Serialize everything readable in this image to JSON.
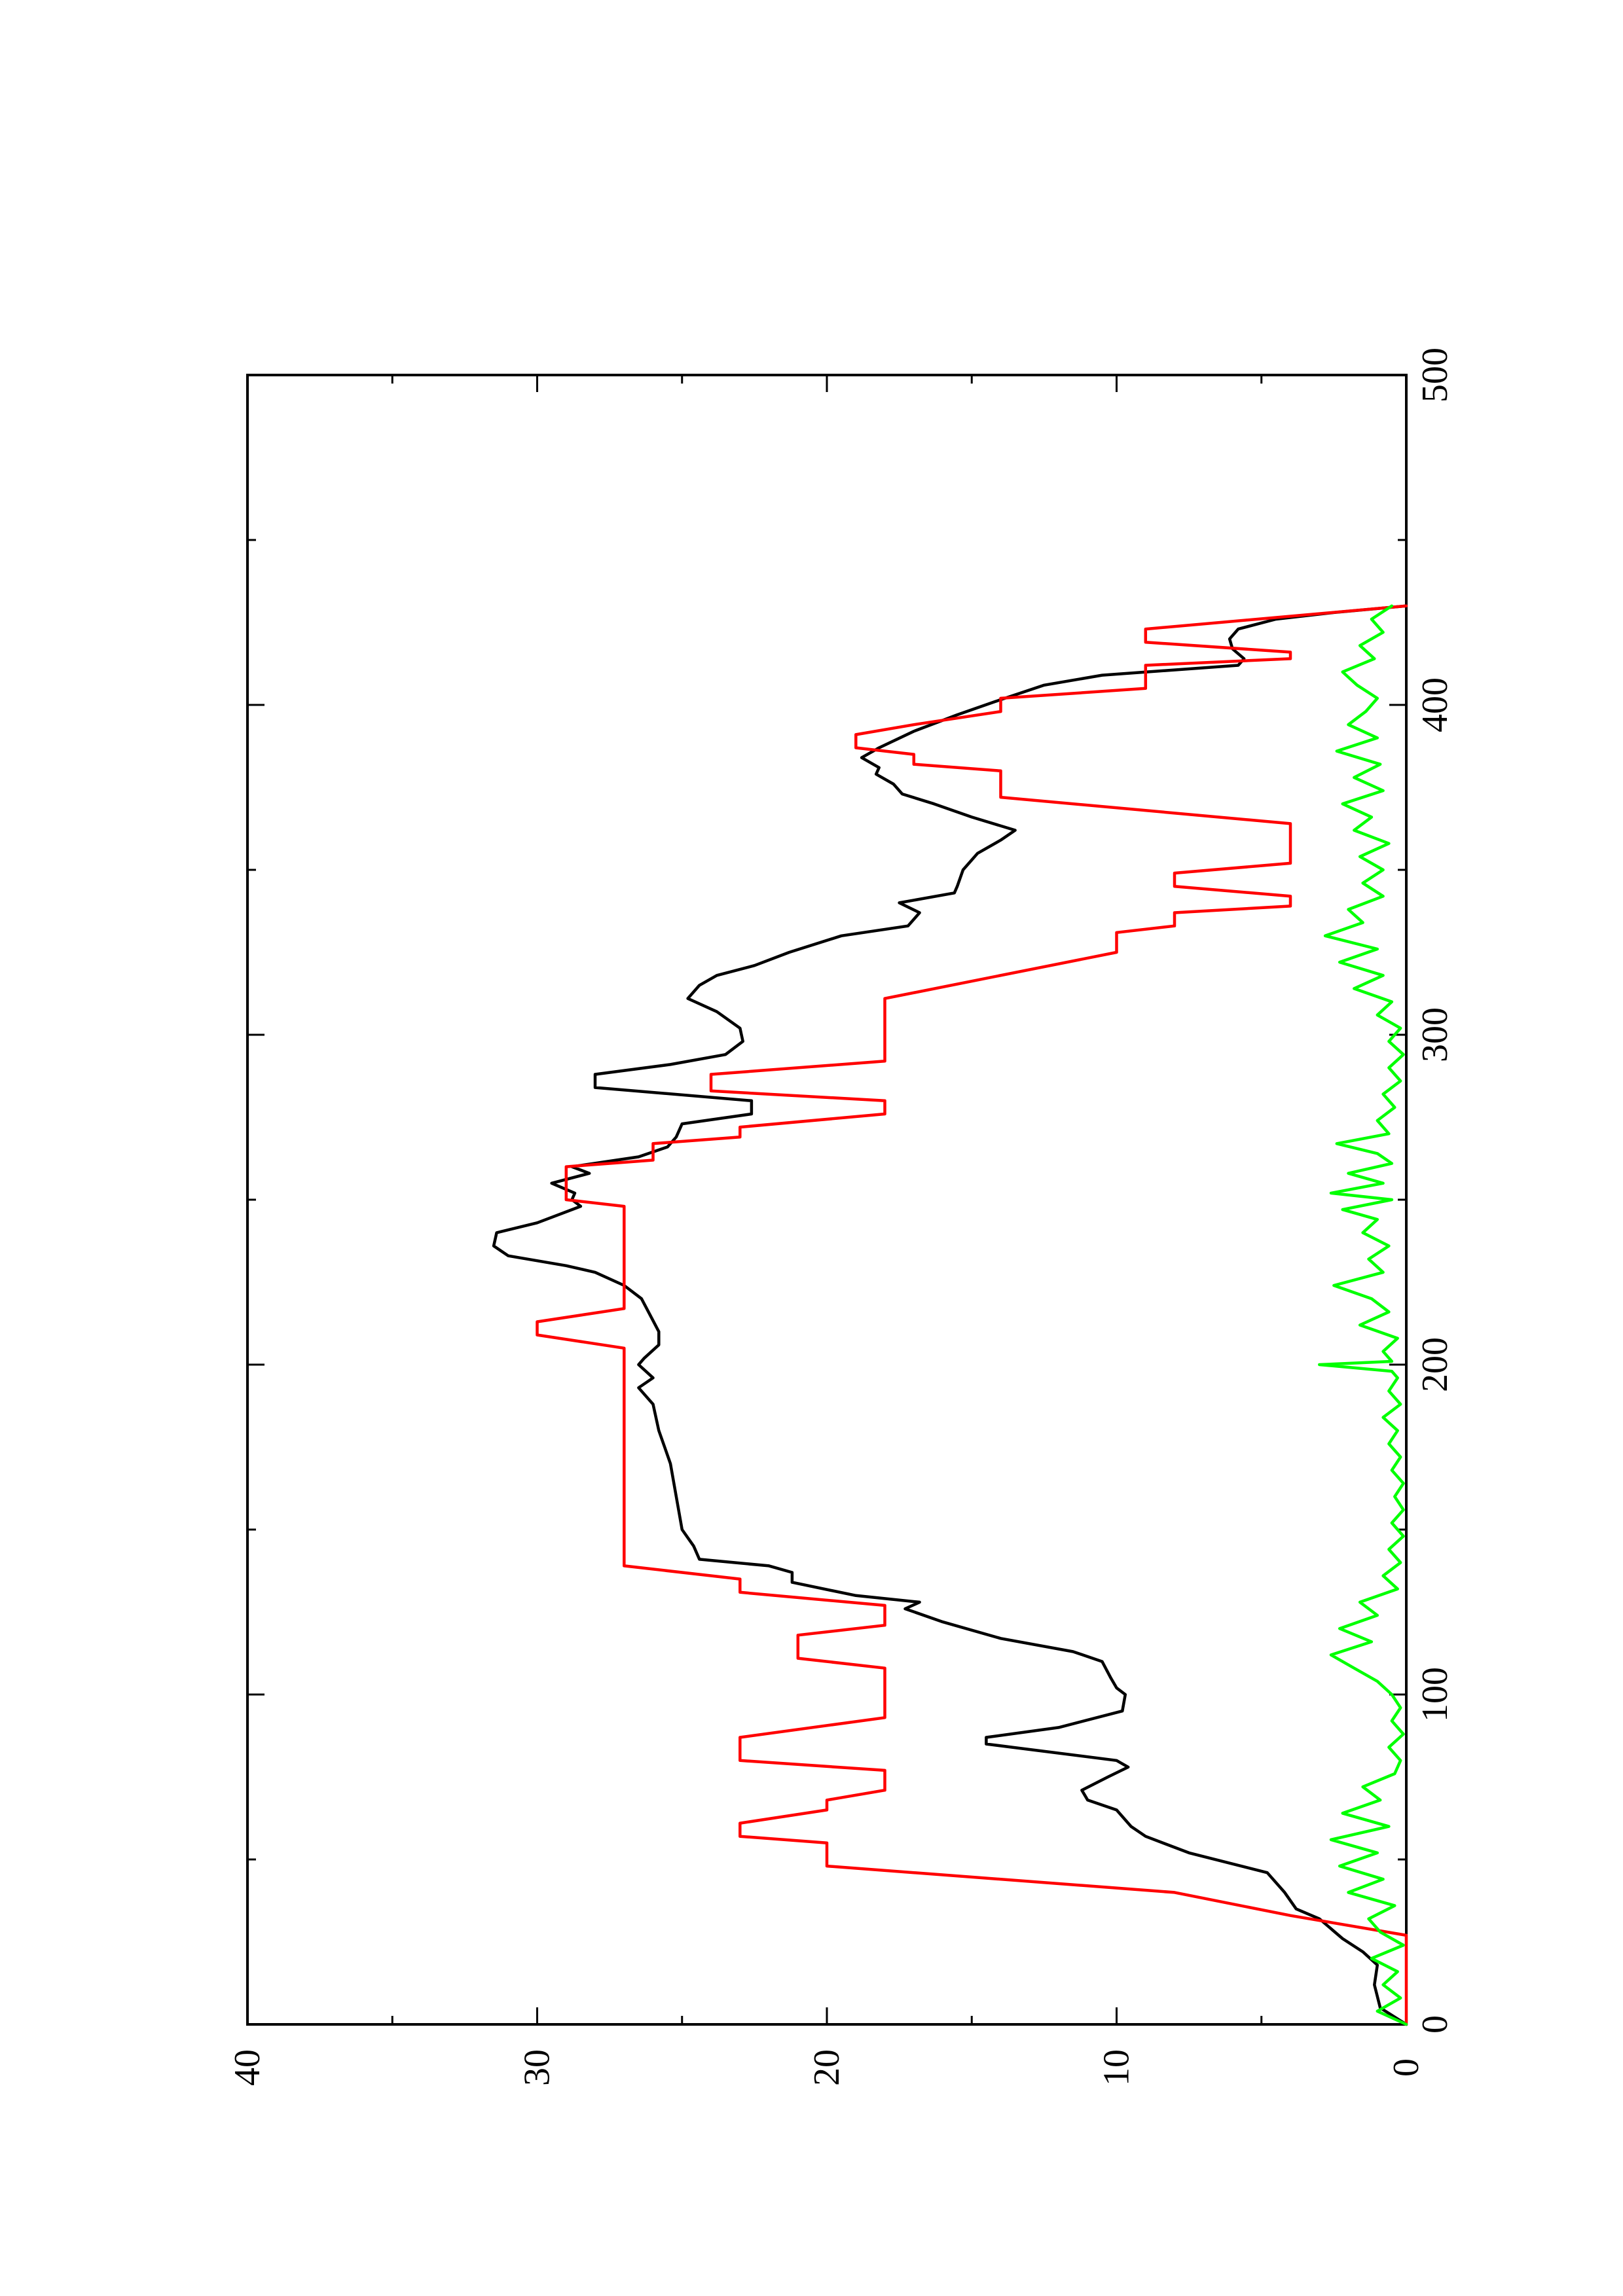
{
  "chart_data": {
    "type": "line",
    "orientation": "rotated-90-ccw",
    "title": "",
    "xlabel": "",
    "ylabel": "",
    "xlim": [
      0,
      500
    ],
    "ylim": [
      0,
      40
    ],
    "x_ticks": [
      0,
      100,
      200,
      300,
      400,
      500
    ],
    "y_ticks": [
      0,
      10,
      20,
      30,
      40
    ],
    "x_tick_labels": [
      "0",
      "100",
      "200",
      "300",
      "400",
      "500"
    ],
    "y_tick_labels": [
      "0",
      "10",
      "20",
      "30",
      "40"
    ],
    "grid": false,
    "legend": "none",
    "series": [
      {
        "color": "#000000",
        "points": [
          [
            0,
            0
          ],
          [
            5,
            0.9
          ],
          [
            12,
            1.1
          ],
          [
            18,
            1.0
          ],
          [
            22,
            1.5
          ],
          [
            26,
            2.2
          ],
          [
            32,
            3.0
          ],
          [
            35,
            3.8
          ],
          [
            40,
            4.2
          ],
          [
            46,
            4.8
          ],
          [
            52,
            7.5
          ],
          [
            57,
            9.0
          ],
          [
            60,
            9.5
          ],
          [
            65,
            10.0
          ],
          [
            68,
            11.0
          ],
          [
            71,
            11.2
          ],
          [
            75,
            10.3
          ],
          [
            78,
            9.6
          ],
          [
            80,
            10.0
          ],
          [
            85,
            14.5
          ],
          [
            87,
            14.5
          ],
          [
            90,
            12.0
          ],
          [
            95,
            9.8
          ],
          [
            100,
            9.7
          ],
          [
            102,
            10.0
          ],
          [
            105,
            10.2
          ],
          [
            110,
            10.5
          ],
          [
            113,
            11.5
          ],
          [
            117,
            14.0
          ],
          [
            122,
            16.0
          ],
          [
            126,
            17.3
          ],
          [
            128,
            16.8
          ],
          [
            130,
            19.0
          ],
          [
            134,
            21.2
          ],
          [
            137,
            21.2
          ],
          [
            139,
            22.0
          ],
          [
            141,
            24.4
          ],
          [
            145,
            24.6
          ],
          [
            150,
            25.0
          ],
          [
            160,
            25.2
          ],
          [
            170,
            25.4
          ],
          [
            175,
            25.6
          ],
          [
            180,
            25.8
          ],
          [
            188,
            26.0
          ],
          [
            193,
            26.5
          ],
          [
            196,
            26.0
          ],
          [
            200,
            26.5
          ],
          [
            202,
            26.3
          ],
          [
            206,
            25.8
          ],
          [
            210,
            25.8
          ],
          [
            215,
            26.1
          ],
          [
            220,
            26.4
          ],
          [
            224,
            27.0
          ],
          [
            228,
            28.0
          ],
          [
            230,
            29.0
          ],
          [
            233,
            31.0
          ],
          [
            236,
            31.5
          ],
          [
            240,
            31.4
          ],
          [
            243,
            30.0
          ],
          [
            248,
            28.5
          ],
          [
            250,
            28.8
          ],
          [
            252,
            28.7
          ],
          [
            255,
            29.5
          ],
          [
            258,
            28.2
          ],
          [
            260,
            28.8
          ],
          [
            263,
            26.5
          ],
          [
            266,
            25.5
          ],
          [
            269,
            25.2
          ],
          [
            273,
            25.0
          ],
          [
            276,
            22.6
          ],
          [
            280,
            22.6
          ],
          [
            284,
            28.0
          ],
          [
            288,
            28.0
          ],
          [
            291,
            25.4
          ],
          [
            294,
            23.5
          ],
          [
            298,
            22.9
          ],
          [
            302,
            23.0
          ],
          [
            307,
            23.8
          ],
          [
            311,
            24.8
          ],
          [
            315,
            24.4
          ],
          [
            318,
            23.8
          ],
          [
            321,
            22.5
          ],
          [
            325,
            21.3
          ],
          [
            330,
            19.5
          ],
          [
            333,
            17.2
          ],
          [
            337,
            16.8
          ],
          [
            340,
            17.5
          ],
          [
            343,
            15.6
          ],
          [
            345,
            15.5
          ],
          [
            350,
            15.3
          ],
          [
            353,
            15.0
          ],
          [
            355,
            14.8
          ],
          [
            359,
            14.0
          ],
          [
            362,
            13.5
          ],
          [
            366,
            15.0
          ],
          [
            370,
            16.3
          ],
          [
            373,
            17.4
          ],
          [
            376,
            17.7
          ],
          [
            379,
            18.3
          ],
          [
            381,
            18.2
          ],
          [
            384,
            18.8
          ],
          [
            387,
            18.2
          ],
          [
            392,
            17.0
          ],
          [
            397,
            15.5
          ],
          [
            401,
            14.2
          ],
          [
            406,
            12.5
          ],
          [
            409,
            10.5
          ],
          [
            412,
            5.8
          ],
          [
            414,
            5.6
          ],
          [
            417,
            6.0
          ],
          [
            420,
            6.1
          ],
          [
            423,
            5.8
          ],
          [
            426,
            4.5
          ],
          [
            428,
            2.5
          ],
          [
            430,
            0
          ]
        ]
      },
      {
        "color": "#ff0000",
        "points": [
          [
            0,
            0
          ],
          [
            27,
            0
          ],
          [
            33,
            4
          ],
          [
            40,
            8
          ],
          [
            48,
            20
          ],
          [
            55,
            20
          ],
          [
            57,
            23
          ],
          [
            61,
            23
          ],
          [
            65,
            20
          ],
          [
            68,
            20
          ],
          [
            71,
            18
          ],
          [
            77,
            18
          ],
          [
            80,
            23
          ],
          [
            87,
            23
          ],
          [
            93,
            18
          ],
          [
            108,
            18
          ],
          [
            111,
            21
          ],
          [
            118,
            21
          ],
          [
            121,
            18
          ],
          [
            127,
            18
          ],
          [
            131,
            23
          ],
          [
            135,
            23
          ],
          [
            139,
            27
          ],
          [
            205,
            27
          ],
          [
            209,
            30
          ],
          [
            213,
            30
          ],
          [
            217,
            27
          ],
          [
            248,
            27
          ],
          [
            250,
            29
          ],
          [
            260,
            29
          ],
          [
            262,
            26
          ],
          [
            267,
            26
          ],
          [
            269,
            23
          ],
          [
            272,
            23
          ],
          [
            276,
            18
          ],
          [
            280,
            18
          ],
          [
            283,
            24
          ],
          [
            288,
            24
          ],
          [
            292,
            18
          ],
          [
            311,
            18
          ],
          [
            325,
            10
          ],
          [
            331,
            10
          ],
          [
            333,
            8
          ],
          [
            337,
            8
          ],
          [
            339,
            4
          ],
          [
            342,
            4
          ],
          [
            345,
            8
          ],
          [
            349,
            8
          ],
          [
            352,
            4
          ],
          [
            364,
            4
          ],
          [
            372,
            14
          ],
          [
            380,
            14
          ],
          [
            382,
            17
          ],
          [
            385,
            17
          ],
          [
            387,
            19
          ],
          [
            391,
            19
          ],
          [
            394,
            17
          ],
          [
            398,
            14
          ],
          [
            402,
            14
          ],
          [
            405,
            9
          ],
          [
            412,
            9
          ],
          [
            414,
            4
          ],
          [
            416,
            4
          ],
          [
            419,
            9
          ],
          [
            423,
            9
          ],
          [
            430,
            0
          ]
        ]
      },
      {
        "color": "#00ff00",
        "points": [
          [
            0,
            0
          ],
          [
            4,
            1.0
          ],
          [
            8,
            0.2
          ],
          [
            12,
            0.8
          ],
          [
            16,
            0.3
          ],
          [
            20,
            1.2
          ],
          [
            24,
            0.1
          ],
          [
            28,
            0.9
          ],
          [
            32,
            1.3
          ],
          [
            36,
            0.4
          ],
          [
            40,
            2.0
          ],
          [
            44,
            0.8
          ],
          [
            48,
            2.3
          ],
          [
            52,
            1.0
          ],
          [
            56,
            2.6
          ],
          [
            60,
            0.6
          ],
          [
            64,
            2.2
          ],
          [
            68,
            0.9
          ],
          [
            72,
            1.5
          ],
          [
            76,
            0.4
          ],
          [
            80,
            0.2
          ],
          [
            84,
            0.6
          ],
          [
            88,
            0.1
          ],
          [
            92,
            0.5
          ],
          [
            96,
            0.2
          ],
          [
            100,
            0.5
          ],
          [
            104,
            1.0
          ],
          [
            108,
            1.8
          ],
          [
            112,
            2.6
          ],
          [
            116,
            1.2
          ],
          [
            120,
            2.3
          ],
          [
            124,
            1.0
          ],
          [
            128,
            1.6
          ],
          [
            132,
            0.3
          ],
          [
            136,
            0.8
          ],
          [
            140,
            0.2
          ],
          [
            144,
            0.6
          ],
          [
            148,
            0.1
          ],
          [
            152,
            0.5
          ],
          [
            156,
            0.1
          ],
          [
            160,
            0.4
          ],
          [
            164,
            0.1
          ],
          [
            168,
            0.5
          ],
          [
            172,
            0.2
          ],
          [
            176,
            0.6
          ],
          [
            180,
            0.3
          ],
          [
            184,
            0.8
          ],
          [
            188,
            0.2
          ],
          [
            192,
            0.6
          ],
          [
            196,
            0.3
          ],
          [
            198,
            0.5
          ],
          [
            200,
            3.0
          ],
          [
            201,
            0.5
          ],
          [
            204,
            0.8
          ],
          [
            208,
            0.3
          ],
          [
            212,
            1.6
          ],
          [
            216,
            0.6
          ],
          [
            220,
            1.2
          ],
          [
            224,
            2.5
          ],
          [
            228,
            0.8
          ],
          [
            232,
            1.3
          ],
          [
            236,
            0.6
          ],
          [
            240,
            1.5
          ],
          [
            244,
            1.0
          ],
          [
            247,
            2.2
          ],
          [
            250,
            0.5
          ],
          [
            252,
            2.6
          ],
          [
            255,
            0.8
          ],
          [
            258,
            2.0
          ],
          [
            261,
            0.5
          ],
          [
            264,
            1.0
          ],
          [
            267,
            2.4
          ],
          [
            270,
            0.6
          ],
          [
            274,
            1.0
          ],
          [
            278,
            0.4
          ],
          [
            282,
            0.8
          ],
          [
            286,
            0.2
          ],
          [
            290,
            0.6
          ],
          [
            294,
            0.1
          ],
          [
            298,
            0.6
          ],
          [
            302,
            0.2
          ],
          [
            306,
            1.0
          ],
          [
            310,
            0.5
          ],
          [
            314,
            1.8
          ],
          [
            318,
            0.8
          ],
          [
            322,
            2.3
          ],
          [
            326,
            1.0
          ],
          [
            330,
            2.8
          ],
          [
            334,
            1.5
          ],
          [
            338,
            2.0
          ],
          [
            342,
            0.8
          ],
          [
            346,
            1.5
          ],
          [
            350,
            0.8
          ],
          [
            354,
            1.6
          ],
          [
            358,
            0.6
          ],
          [
            362,
            1.8
          ],
          [
            366,
            1.2
          ],
          [
            370,
            2.2
          ],
          [
            374,
            0.8
          ],
          [
            378,
            1.8
          ],
          [
            382,
            0.9
          ],
          [
            386,
            2.4
          ],
          [
            390,
            1.0
          ],
          [
            394,
            2.0
          ],
          [
            398,
            1.4
          ],
          [
            402,
            1.0
          ],
          [
            406,
            1.7
          ],
          [
            410,
            2.2
          ],
          [
            414,
            1.1
          ],
          [
            418,
            1.6
          ],
          [
            422,
            0.8
          ],
          [
            426,
            1.2
          ],
          [
            430,
            0.5
          ]
        ]
      }
    ]
  }
}
